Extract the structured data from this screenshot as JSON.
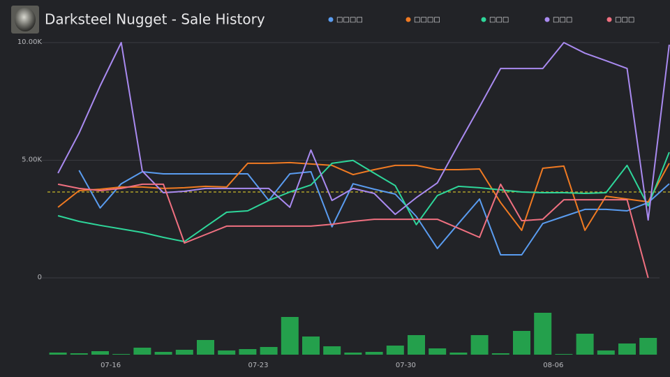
{
  "chart_data": {
    "type": "line",
    "title": "Darksteel Nugget - Sale History",
    "categories": [
      null,
      null,
      null,
      "07-16",
      null,
      null,
      null,
      null,
      null,
      null,
      "07-23",
      null,
      null,
      null,
      null,
      null,
      null,
      "07-30",
      null,
      null,
      null,
      null,
      null,
      null,
      "08-06",
      null,
      null,
      null,
      null,
      null
    ],
    "ylim": [
      0,
      10000
    ],
    "yticks": [
      {
        "value": 0,
        "label": "0"
      },
      {
        "value": 5000,
        "label": "5.00K"
      },
      {
        "value": 10000,
        "label": "10.00K"
      }
    ],
    "y2lim": [
      0,
      60
    ],
    "grid": true,
    "legend": "top",
    "average": {
      "value": 3650,
      "color": "#c8b92a"
    },
    "series": [
      {
        "name": "□□□□",
        "color": "#5a9cf0",
        "values": [
          null,
          4570,
          2970,
          4000,
          4510,
          4420,
          4420,
          4420,
          4420,
          4420,
          3290,
          4420,
          4510,
          2170,
          4000,
          3770,
          3560,
          2610,
          1250,
          2310,
          3350,
          980,
          980,
          2310,
          2610,
          2910,
          2910,
          2850,
          3200,
          4000
        ]
      },
      {
        "name": "□□□□",
        "color": "#f07a22",
        "values": [
          3000,
          3710,
          3770,
          3860,
          3860,
          3800,
          3830,
          3890,
          3860,
          4870,
          4870,
          4900,
          4840,
          4780,
          4390,
          4600,
          4780,
          4780,
          4600,
          4600,
          4630,
          3200,
          2020,
          4660,
          4750,
          2020,
          3470,
          3350,
          3230,
          4870
        ]
      },
      {
        "name": "□□□",
        "color": "#2ed69a",
        "values": [
          2640,
          2400,
          2230,
          2080,
          1930,
          1720,
          1540,
          2170,
          2790,
          2850,
          3290,
          3650,
          3950,
          4870,
          4990,
          4450,
          3920,
          2260,
          3500,
          3890,
          3830,
          3740,
          3650,
          3620,
          3620,
          3590,
          3620,
          4780,
          3060,
          5340
        ]
      },
      {
        "name": "□□□",
        "color": "#a98af0",
        "values": [
          4450,
          6150,
          8160,
          10000,
          4540,
          3620,
          3680,
          3800,
          3800,
          3800,
          3800,
          3000,
          5430,
          3290,
          3800,
          3590,
          2700,
          3410,
          4040,
          5670,
          7270,
          8900,
          8900,
          8900,
          10000,
          9550,
          9230,
          8900,
          2460,
          9910
        ]
      },
      {
        "name": "□□□",
        "color": "#f07080",
        "values": [
          3980,
          3800,
          3710,
          3800,
          3980,
          3980,
          1480,
          1840,
          2200,
          2200,
          2200,
          2200,
          2200,
          2280,
          2400,
          2490,
          2490,
          2490,
          2490,
          2110,
          1720,
          3980,
          2430,
          2490,
          3320,
          3320,
          3320,
          3320,
          0,
          null
        ]
      },
      {
        "type": "bar",
        "axis": "y2",
        "color": "#24a04c",
        "values": [
          3,
          2,
          5,
          1,
          10,
          4,
          7,
          21,
          6,
          8,
          11,
          54,
          26,
          12,
          3,
          4,
          13,
          28,
          9,
          3,
          28,
          2,
          34,
          60,
          1,
          30,
          6,
          16,
          24,
          null
        ]
      }
    ]
  }
}
